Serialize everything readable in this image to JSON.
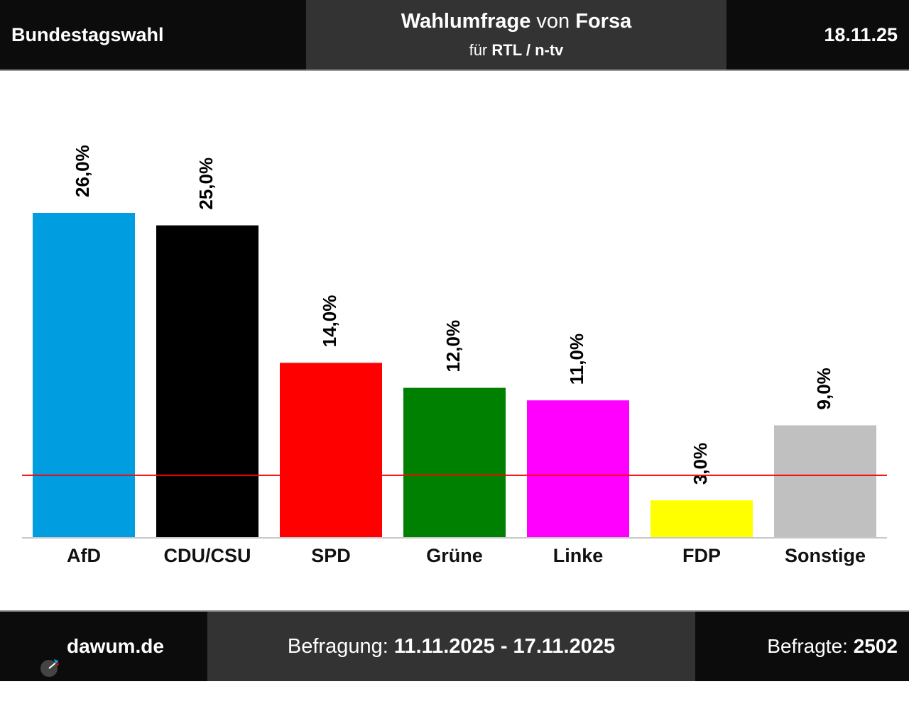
{
  "header": {
    "left": "Bundestagswahl",
    "title_bold1": "Wahlumfrage",
    "title_mid": " von ",
    "title_bold2": "Forsa",
    "sub_prefix": "für ",
    "sub_bold": "RTL / n-tv",
    "date": "18.11.25"
  },
  "footer": {
    "site": "dawum.de",
    "survey_label": "Befragung: ",
    "survey_period": "11.11.2025 - 17.11.2025",
    "respondents_label": "Befragte: ",
    "respondents": "2502"
  },
  "chart_data": {
    "type": "bar",
    "categories": [
      "AfD",
      "CDU/CSU",
      "SPD",
      "Grüne",
      "Linke",
      "FDP",
      "Sonstige"
    ],
    "values": [
      26.0,
      25.0,
      14.0,
      12.0,
      11.0,
      3.0,
      9.0
    ],
    "value_labels": [
      "26,0%",
      "25,0%",
      "14,0%",
      "12,0%",
      "11,0%",
      "3,0%",
      "9,0%"
    ],
    "colors": [
      "#009ee0",
      "#000000",
      "#ff0000",
      "#008000",
      "#ff00ff",
      "#ffff00",
      "#c0c0c0"
    ],
    "threshold": 5.0,
    "threshold_color": "#ff0000",
    "ylim": [
      0,
      26
    ]
  }
}
